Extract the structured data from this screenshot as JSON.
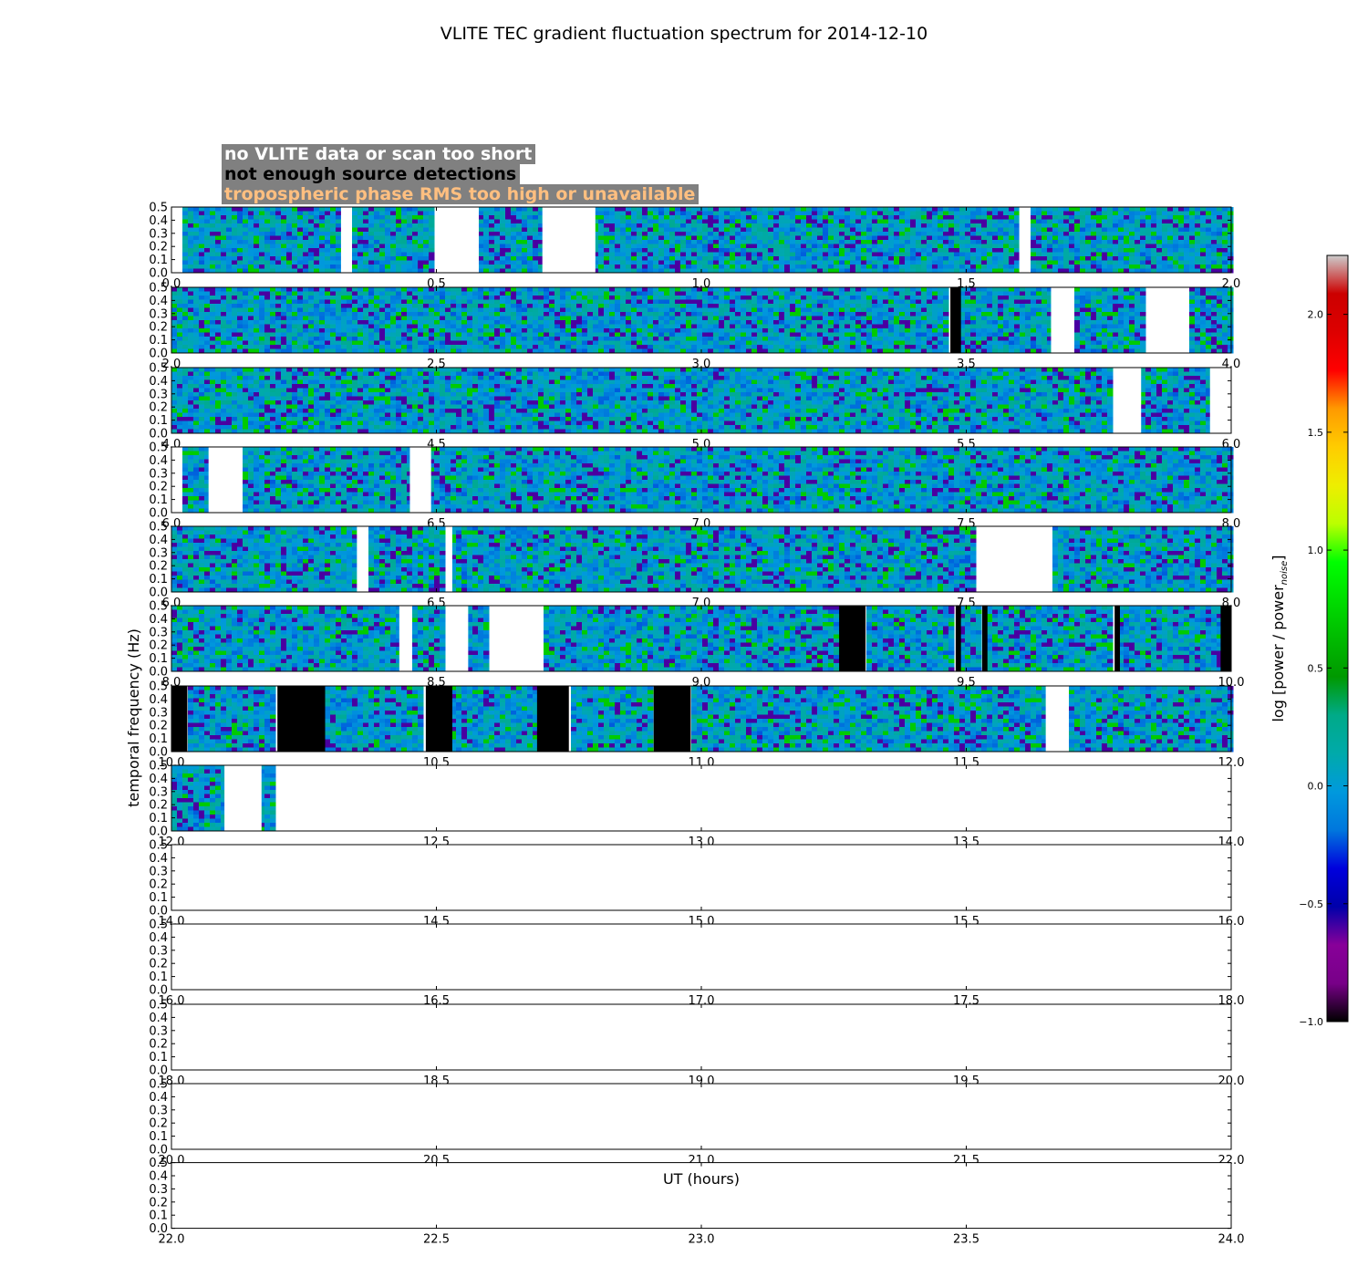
{
  "chart_data": {
    "type": "heatmap",
    "title": "VLITE TEC gradient fluctuation spectrum for 2014-12-10",
    "xlabel": "UT (hours)",
    "ylabel": "temporal frequency (Hz)",
    "colorbar_label": "log [power / power",
    "colorbar_label_sub": "noise",
    "colorbar_label_end": "]",
    "colorbar_range": [
      -1.0,
      2.25
    ],
    "colorbar_ticks": [
      "−1.0",
      "−0.5",
      "0.0",
      "0.5",
      "1.0",
      "1.5",
      "2.0"
    ],
    "colorbar_tick_values": [
      -1.0,
      -0.5,
      0.0,
      0.5,
      1.0,
      1.5,
      2.0
    ],
    "colormap": "nipy_spectral",
    "ylim": [
      0.0,
      0.5
    ],
    "y_ticks": [
      "0.0",
      "0.1",
      "0.2",
      "0.3",
      "0.4",
      "0.5"
    ],
    "typical_value_range": [
      -0.6,
      0.6
    ],
    "legend": [
      {
        "label": "no VLITE data or scan too short",
        "color": "#ffffff"
      },
      {
        "label": "not enough source detections",
        "color": "#000000"
      },
      {
        "label": "tropospheric phase RMS too high or unavailable",
        "color": "#ffbf80"
      }
    ],
    "rows": [
      {
        "x_ticks": [
          "0.0",
          "0.5",
          "1.0",
          "1.5",
          "2.0"
        ],
        "range": [
          0,
          2
        ],
        "no_data": [
          [
            0.0,
            0.02
          ],
          [
            0.32,
            0.34
          ],
          [
            0.5,
            0.58
          ],
          [
            0.7,
            0.8
          ],
          [
            1.6,
            1.62
          ]
        ],
        "few_sources": []
      },
      {
        "x_ticks": [
          "2.0",
          "2.5",
          "3.0",
          "3.5",
          "4.0"
        ],
        "range": [
          2,
          4
        ],
        "no_data": [
          [
            3.66,
            3.7
          ],
          [
            3.84,
            3.92
          ]
        ],
        "few_sources": [
          [
            3.47,
            3.49
          ]
        ]
      },
      {
        "x_ticks": [
          "4.0",
          "4.5",
          "5.0",
          "5.5",
          "6.0"
        ],
        "range": [
          4,
          6
        ],
        "no_data": [
          [
            5.78,
            5.83
          ],
          [
            5.96,
            6.0
          ]
        ],
        "few_sources": []
      },
      {
        "x_ticks": [
          "6.0",
          "6.5",
          "7.0",
          "7.5",
          "8.0"
        ],
        "range": [
          6,
          8
        ],
        "no_data": [
          [
            6.0,
            6.02
          ],
          [
            6.07,
            6.13
          ],
          [
            6.45,
            6.49
          ]
        ],
        "few_sources": []
      },
      {
        "x_ticks": [
          "6.0",
          "6.5",
          "7.0",
          "7.5",
          "8.0"
        ],
        "range": [
          6,
          8
        ],
        "no_data": [
          [
            6.35,
            6.37
          ],
          [
            6.52,
            6.53
          ],
          [
            7.52,
            7.66
          ]
        ],
        "few_sources": []
      },
      {
        "x_ticks": [
          "8.0",
          "8.5",
          "9.0",
          "9.5",
          "10.0"
        ],
        "range": [
          8,
          10
        ],
        "no_data": [
          [
            8.43,
            8.45
          ],
          [
            8.52,
            8.56
          ],
          [
            8.6,
            8.7
          ]
        ],
        "few_sources": [
          [
            9.26,
            9.31
          ],
          [
            9.48,
            9.49
          ],
          [
            9.53,
            9.54
          ],
          [
            9.78,
            9.79
          ],
          [
            9.98,
            10.0
          ]
        ]
      },
      {
        "x_ticks": [
          "10.0",
          "10.5",
          "11.0",
          "11.5",
          "12.0"
        ],
        "range": [
          10,
          12
        ],
        "no_data": [
          [
            11.65,
            11.69
          ]
        ],
        "few_sources": [
          [
            10.0,
            10.03
          ],
          [
            10.2,
            10.29
          ],
          [
            10.48,
            10.53
          ],
          [
            10.69,
            10.75
          ],
          [
            10.91,
            10.98
          ]
        ]
      },
      {
        "x_ticks": [
          "12.0",
          "12.5",
          "13.0",
          "13.5",
          "14.0"
        ],
        "range": [
          12,
          14
        ],
        "no_data": [
          [
            12.1,
            12.17
          ],
          [
            12.2,
            14.0
          ]
        ],
        "few_sources": []
      },
      {
        "x_ticks": [
          "14.0",
          "14.5",
          "15.0",
          "15.5",
          "16.0"
        ],
        "range": [
          14,
          16
        ],
        "no_data": [
          [
            14.0,
            16.0
          ]
        ],
        "few_sources": []
      },
      {
        "x_ticks": [
          "16.0",
          "16.5",
          "17.0",
          "17.5",
          "18.0"
        ],
        "range": [
          16,
          18
        ],
        "no_data": [
          [
            16.0,
            18.0
          ]
        ],
        "few_sources": []
      },
      {
        "x_ticks": [
          "18.0",
          "18.5",
          "19.0",
          "19.5",
          "20.0"
        ],
        "range": [
          18,
          20
        ],
        "no_data": [
          [
            18.0,
            20.0
          ]
        ],
        "few_sources": []
      },
      {
        "x_ticks": [
          "20.0",
          "20.5",
          "21.0",
          "21.5",
          "22.0"
        ],
        "range": [
          20,
          22
        ],
        "no_data": [
          [
            20.0,
            22.0
          ]
        ],
        "few_sources": []
      },
      {
        "x_ticks": [
          "22.0",
          "22.5",
          "23.0",
          "23.5",
          "24.0"
        ],
        "range": [
          22,
          24
        ],
        "no_data": [
          [
            22.0,
            24.0
          ]
        ],
        "few_sources": []
      }
    ]
  }
}
